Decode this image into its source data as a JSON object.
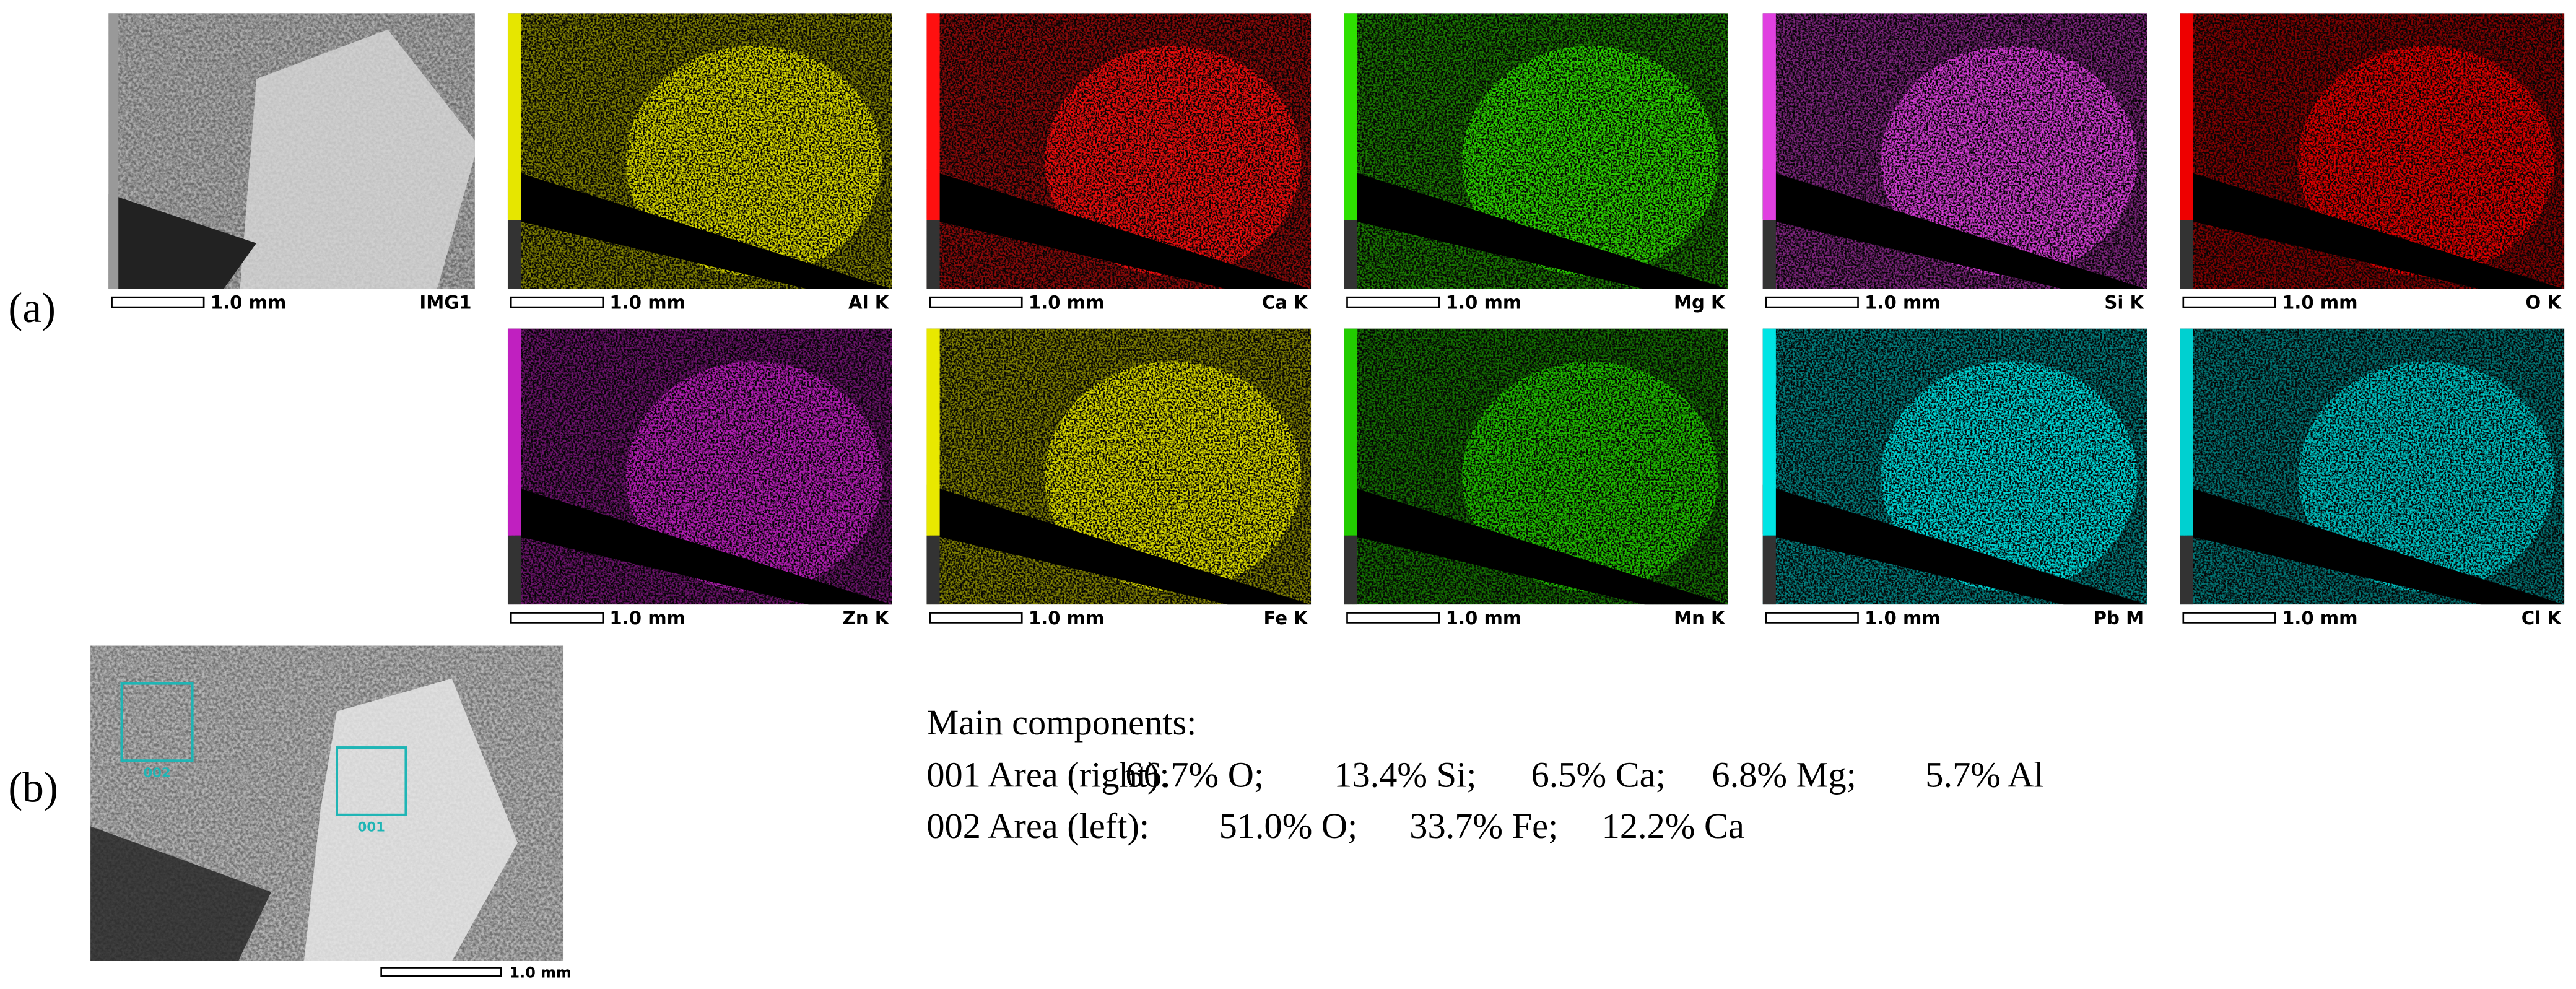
{
  "label_a": "(a)",
  "label_b": "(b)",
  "maps": [
    {
      "name": "IMG1",
      "scale": "1.0 mm",
      "color": "#c8c8c8"
    },
    {
      "name": "Al K",
      "scale": "1.0 mm",
      "color": "#e6e600"
    },
    {
      "name": "Ca K",
      "scale": "1.0 mm",
      "color": "#ff1010"
    },
    {
      "name": "Mg K",
      "scale": "1.0 mm",
      "color": "#2ee000"
    },
    {
      "name": "Si K",
      "scale": "1.0 mm",
      "color": "#e040e0"
    },
    {
      "name": "O K",
      "scale": "1.0 mm",
      "color": "#ee0000"
    },
    {
      "name": "Zn K",
      "scale": "1.0 mm",
      "color": "#c020c0"
    },
    {
      "name": "Fe K",
      "scale": "1.0 mm",
      "color": "#e8e800"
    },
    {
      "name": "Mn K",
      "scale": "1.0 mm",
      "color": "#22cc00"
    },
    {
      "name": "Pb M",
      "scale": "1.0 mm",
      "color": "#00e4e4"
    },
    {
      "name": "Cl K",
      "scale": "1.0 mm",
      "color": "#00d0d0"
    }
  ],
  "sem": {
    "scale": "1.0 mm",
    "areas": [
      {
        "label": "002"
      },
      {
        "label": "001"
      }
    ]
  },
  "components": {
    "title": "Main components:",
    "rows": [
      {
        "label": "001 Area (right):",
        "items": [
          "66.7% O;",
          "13.4% Si;",
          "6.5% Ca;",
          "6.8% Mg;",
          "5.7% Al"
        ]
      },
      {
        "label": "002 Area (left):",
        "items": [
          "51.0% O;",
          "33.7% Fe;",
          "12.2% Ca"
        ]
      }
    ]
  }
}
